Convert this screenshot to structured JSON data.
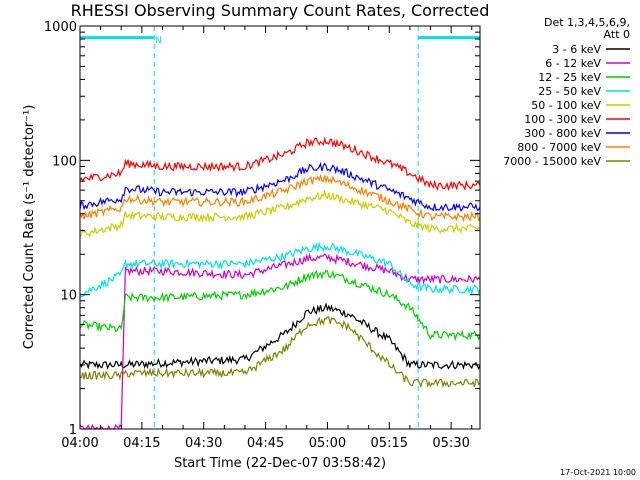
{
  "chart_data": {
    "type": "line",
    "title": "RHESSI Observing Summary Count Rates, Corrected",
    "ylabel": "Corrected Count Rate (s⁻¹ detector⁻¹)",
    "xlabel": "Start Time (22-Dec-07 03:58:42)",
    "y_scale": "log",
    "ylim": [
      1,
      1000
    ],
    "y_ticks": [
      1,
      10,
      100,
      1000
    ],
    "y_tick_labels": [
      "1",
      "10",
      "100",
      "1000"
    ],
    "x_unit": "minutes after 04:00",
    "xlim": [
      0,
      97
    ],
    "x_ticks": [
      0,
      15,
      30,
      45,
      60,
      75,
      90
    ],
    "x_tick_labels": [
      "04:00",
      "04:15",
      "04:30",
      "04:45",
      "05:00",
      "05:15",
      "05:30"
    ],
    "grid": false,
    "legend_placement": "right",
    "legend_header": [
      "Det 1,3,4,5,6,9,",
      "Att 0"
    ],
    "annotations": [
      {
        "text": "N",
        "x": 18.2,
        "y": 800
      }
    ],
    "night_periods": [
      [
        0,
        18
      ],
      [
        82,
        97
      ]
    ],
    "footer": "17-Oct-2021 10:00",
    "series": [
      {
        "name": "3 - 6 keV",
        "color": "#000000",
        "values": [
          3.0,
          3.0,
          3.0,
          3.1,
          3.3,
          5.2,
          7.4,
          8.0,
          7.2,
          4.6,
          3.0,
          3.0,
          3.0,
          3.0
        ]
      },
      {
        "name": "6 - 12 keV",
        "color": "#cc00cc",
        "values": [
          1.0,
          1.0,
          15.0,
          15.0,
          14.0,
          16.8,
          18.5,
          19.0,
          17.6,
          15.0,
          13.0,
          13.0,
          13.0,
          13.0
        ]
      },
      {
        "name": "12 - 25 keV",
        "color": "#00cc00",
        "values": [
          6.0,
          5.5,
          9.5,
          9.5,
          10.0,
          11.5,
          13.8,
          14.5,
          13.0,
          10.0,
          8.0,
          5.0,
          5.0,
          5.0
        ]
      },
      {
        "name": "25 - 50 keV",
        "color": "#00e0e0",
        "values": [
          10.0,
          14.0,
          17.0,
          17.0,
          17.0,
          19.5,
          22.0,
          23.0,
          21.0,
          17.0,
          12.0,
          11.0,
          11.0,
          11.0
        ]
      },
      {
        "name": "50 - 100 keV",
        "color": "#cccc00",
        "values": [
          28.0,
          33.0,
          39.0,
          38.0,
          38.0,
          45.0,
          52.0,
          55.0,
          50.0,
          42.0,
          34.0,
          31.0,
          31.0,
          31.0
        ]
      },
      {
        "name": "100 - 300 keV",
        "color": "#ff0000",
        "values": [
          72.0,
          80.0,
          95.0,
          90.0,
          90.0,
          112.0,
          135.0,
          140.0,
          125.0,
          95.0,
          80.0,
          65.0,
          65.0,
          65.0
        ]
      },
      {
        "name": "300 - 800 keV",
        "color": "#0000ff",
        "values": [
          46.0,
          52.0,
          62.0,
          58.0,
          58.0,
          72.0,
          86.0,
          90.0,
          80.0,
          60.0,
          52.0,
          45.0,
          45.0,
          45.0
        ]
      },
      {
        "name": "800 - 7000 keV",
        "color": "#ff8000",
        "values": [
          38.0,
          44.0,
          52.0,
          49.0,
          49.0,
          60.0,
          70.0,
          73.0,
          65.0,
          50.0,
          43.0,
          38.0,
          38.0,
          38.0
        ]
      },
      {
        "name": "7000 - 15000 keV",
        "color": "#808000",
        "values": [
          2.5,
          2.5,
          2.6,
          2.6,
          2.6,
          4.0,
          6.0,
          6.5,
          5.8,
          3.0,
          2.2,
          2.2,
          2.2,
          2.2
        ]
      }
    ],
    "x": [
      0,
      10,
      11,
      20,
      40,
      50,
      55,
      60,
      65,
      75,
      80,
      85,
      90,
      97
    ]
  },
  "colors": {
    "axes": "#000000",
    "night_bar": "#00e0e0"
  }
}
